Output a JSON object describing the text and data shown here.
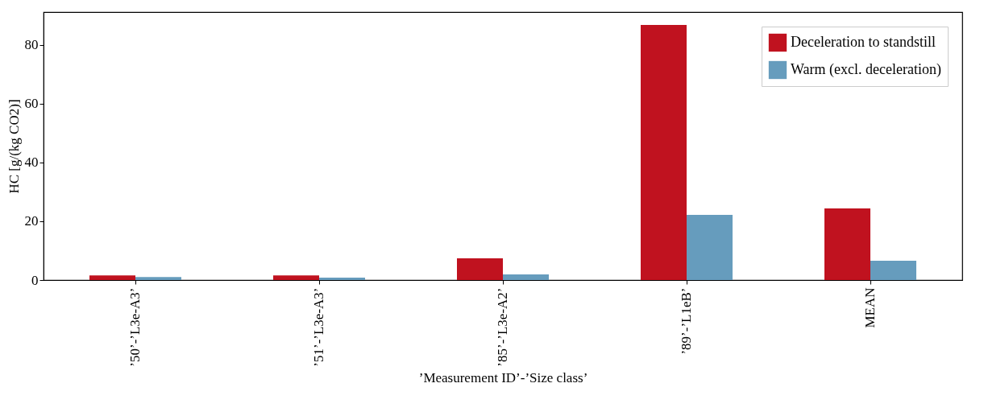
{
  "chart_data": {
    "type": "bar",
    "xlabel": "’Measurement ID’-’Size class’",
    "ylabel": "HC [g/(kg CO2)]",
    "categories": [
      "’50’-’L3e-A3’",
      "’51’-’L3e-A3’",
      "’85’-’L3e-A2’",
      "’89’-’L1eB’",
      "MEAN"
    ],
    "series": [
      {
        "name": "Deceleration to standstill",
        "color": "#c0121f",
        "values": [
          1.6,
          1.6,
          7.4,
          86.8,
          24.4
        ]
      },
      {
        "name": "Warm (excl. deceleration)",
        "color": "#669cbd",
        "values": [
          1.0,
          0.8,
          1.9,
          22.2,
          6.6
        ]
      }
    ],
    "ylim": [
      0,
      91.2
    ],
    "yticks": [
      0,
      20,
      40,
      60,
      80
    ],
    "legend": "top right"
  }
}
